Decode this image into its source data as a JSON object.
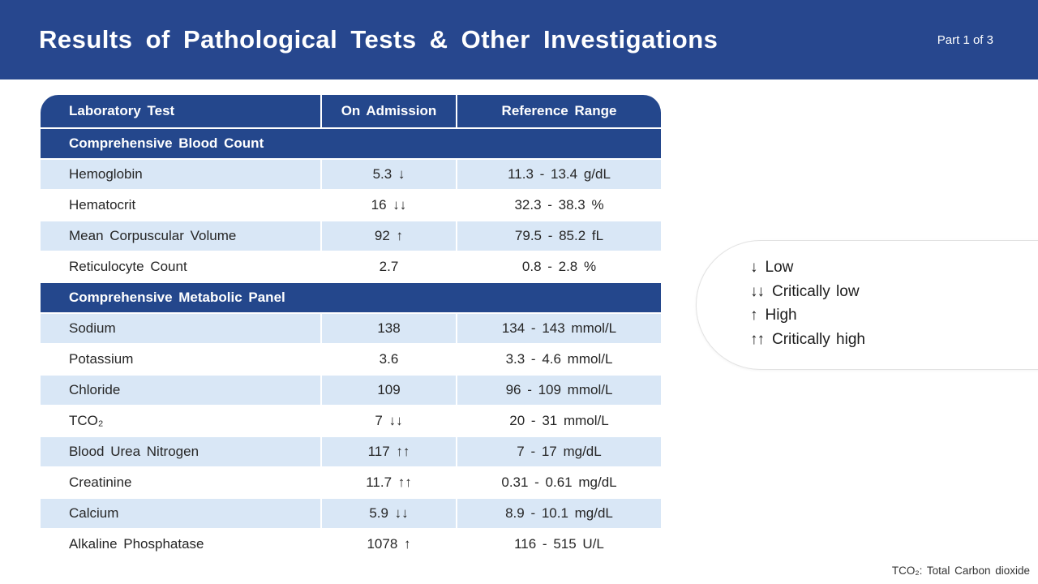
{
  "header": {
    "title": "Results of Pathological Tests & Other Investigations",
    "part": "Part 1 of 3"
  },
  "table": {
    "columns": [
      "Laboratory Test",
      "On Admission",
      "Reference Range"
    ],
    "sections": [
      {
        "title": "Comprehensive Blood Count",
        "rows": [
          {
            "test": "Hemoglobin",
            "value": "5.3 ↓",
            "range": "11.3 - 13.4 g/dL"
          },
          {
            "test": "Hematocrit",
            "value": "16 ↓↓",
            "range": "32.3 - 38.3 %"
          },
          {
            "test": "Mean Corpuscular Volume",
            "value": "92 ↑",
            "range": "79.5 - 85.2 fL"
          },
          {
            "test": "Reticulocyte Count",
            "value": "2.7",
            "range": "0.8 - 2.8 %"
          }
        ]
      },
      {
        "title": "Comprehensive Metabolic Panel",
        "rows": [
          {
            "test": "Sodium",
            "value": "138",
            "range": "134 - 143 mmol/L"
          },
          {
            "test": "Potassium",
            "value": "3.6",
            "range": "3.3 - 4.6 mmol/L"
          },
          {
            "test": "Chloride",
            "value": "109",
            "range": "96 - 109 mmol/L"
          },
          {
            "test": "TCO₂",
            "value": "7 ↓↓",
            "range": "20 - 31 mmol/L"
          },
          {
            "test": "Blood Urea Nitrogen",
            "value": "117 ↑↑",
            "range": "7 - 17 mg/dL"
          },
          {
            "test": "Creatinine",
            "value": "11.7 ↑↑",
            "range": "0.31 - 0.61 mg/dL"
          },
          {
            "test": "Calcium",
            "value": "5.9 ↓↓",
            "range": "8.9 - 10.1 mg/dL"
          },
          {
            "test": "Alkaline Phosphatase",
            "value": "1078 ↑",
            "range": "116 - 515 U/L"
          }
        ]
      }
    ]
  },
  "legend": {
    "items": [
      {
        "symbol": "↓",
        "label": "Low"
      },
      {
        "symbol": "↓↓",
        "label": "Critically low"
      },
      {
        "symbol": "↑",
        "label": "High"
      },
      {
        "symbol": "↑↑",
        "label": "Critically high"
      }
    ]
  },
  "footnote": "TCO₂: Total Carbon dioxide",
  "colors": {
    "header_band_blue": "#27478e",
    "table_header_blue": "#24478c",
    "row_light_blue": "#d9e7f6",
    "text_dark": "#262626",
    "legend_border": "#e2e2e2"
  }
}
